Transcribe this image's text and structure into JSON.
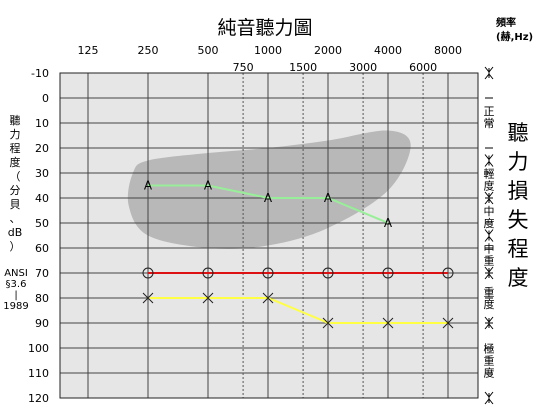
{
  "chart_data": {
    "type": "line",
    "title": "純音聽力圖",
    "frequency_unit_label": [
      "頻率",
      "(赫,Hz)"
    ],
    "y_axis_label": [
      "聽",
      "力",
      "程",
      "度",
      "（",
      "分",
      "貝",
      "、",
      "dB",
      "）"
    ],
    "standard_label": [
      "ANSI",
      "§3.6",
      "|",
      "1989"
    ],
    "right_title": [
      "聽",
      "力",
      "損",
      "失",
      "程",
      "度"
    ],
    "x_octave_ticks": [
      125,
      250,
      500,
      1000,
      2000,
      4000,
      8000
    ],
    "x_octave_tick_labels": [
      "125",
      "250",
      "500",
      "1000",
      "2000",
      "4000",
      "8000"
    ],
    "x_mid_ticks": [
      750,
      1500,
      3000,
      6000
    ],
    "x_mid_tick_labels": [
      "750",
      "1500",
      "3000",
      "6000"
    ],
    "ylim": [
      -10,
      120
    ],
    "y_ticks": [
      -10,
      0,
      10,
      20,
      30,
      40,
      50,
      60,
      70,
      80,
      90,
      100,
      110,
      120
    ],
    "y_tick_labels": [
      "-10",
      "0",
      "10",
      "20",
      "30",
      "40",
      "50",
      "60",
      "70",
      "80",
      "90",
      "100",
      "110",
      "120"
    ],
    "severity_bands": [
      {
        "label": [
          "正",
          "常"
        ],
        "from": -10,
        "to": 25
      },
      {
        "label": [
          "輕",
          "度"
        ],
        "from": 25,
        "to": 40
      },
      {
        "label": [
          "中",
          "度"
        ],
        "from": 40,
        "to": 55
      },
      {
        "label": [
          "中",
          "重"
        ],
        "from": 55,
        "to": 70
      },
      {
        "label": [
          "重",
          "度"
        ],
        "from": 70,
        "to": 90
      },
      {
        "label": [
          "極",
          "重",
          "度"
        ],
        "from": 90,
        "to": 120
      }
    ],
    "series": [
      {
        "marker": "A",
        "color": "#99ee99",
        "x": [
          250,
          500,
          1000,
          2000,
          4000
        ],
        "values": [
          35,
          35,
          40,
          40,
          50
        ]
      },
      {
        "marker": "O",
        "color": "#dd1111",
        "x": [
          250,
          500,
          1000,
          2000,
          4000,
          8000
        ],
        "values": [
          70,
          70,
          70,
          70,
          70,
          70
        ]
      },
      {
        "marker": "X",
        "color": "#ffff44",
        "x": [
          250,
          500,
          1000,
          2000,
          4000,
          8000
        ],
        "values": [
          80,
          80,
          80,
          90,
          90,
          90
        ]
      }
    ],
    "speech_banana": {
      "color": "#b8b8b8",
      "outline": [
        [
          250,
          25
        ],
        [
          500,
          22
        ],
        [
          1000,
          20
        ],
        [
          2000,
          17
        ],
        [
          4000,
          13
        ],
        [
          5200,
          19
        ],
        [
          4000,
          37
        ],
        [
          2000,
          52
        ],
        [
          1000,
          59
        ],
        [
          500,
          60
        ],
        [
          250,
          55
        ],
        [
          200,
          43
        ],
        [
          210,
          30
        ]
      ]
    },
    "grid": true,
    "plot_background": "#e6e6e6"
  }
}
